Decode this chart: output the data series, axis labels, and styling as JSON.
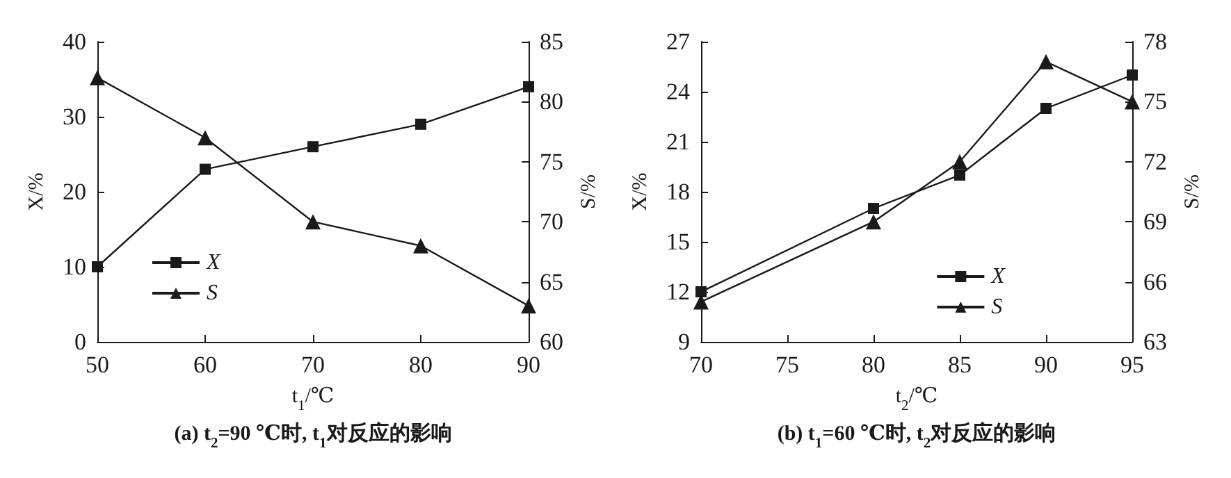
{
  "chart_data": [
    {
      "type": "line",
      "title": "(a) t$_{2}$=90 ℃时, t$_{1}$对反应的影响",
      "xlabel": "t$_{1}$/℃",
      "ylabel": "X/%",
      "y2label": "S/%",
      "x": [
        50,
        60,
        70,
        80,
        90
      ],
      "xlim": [
        50,
        90
      ],
      "xticks": [
        50,
        60,
        70,
        80,
        90
      ],
      "ylim": [
        0,
        40
      ],
      "yticks": [
        0,
        10,
        20,
        30,
        40
      ],
      "y2lim": [
        60,
        85
      ],
      "y2ticks": [
        60,
        65,
        70,
        75,
        80,
        85
      ],
      "legend": "bottom left",
      "series": [
        {
          "name": "X",
          "color": "#1a1a1a",
          "marker": "square",
          "values": [
            10,
            23,
            26,
            29,
            34
          ]
        },
        {
          "name": "S",
          "color": "#1a1a1a",
          "marker": "triangle",
          "axis": "y2",
          "values": [
            82,
            77,
            70,
            68,
            63
          ]
        }
      ]
    },
    {
      "type": "line",
      "title": "(b) t$_{1}$=60 ℃时, t$_{2}$对反应的影响",
      "xlabel": "t$_{2}$/℃",
      "ylabel": "X/%",
      "y2label": "S/%",
      "x": [
        70,
        80,
        85,
        90,
        95
      ],
      "xlim": [
        70,
        95
      ],
      "xticks": [
        70,
        75,
        80,
        85,
        90,
        95
      ],
      "ylim": [
        9,
        27
      ],
      "yticks": [
        9,
        12,
        15,
        18,
        21,
        24,
        27
      ],
      "y2lim": [
        63,
        78
      ],
      "y2ticks": [
        63,
        66,
        69,
        72,
        75,
        78
      ],
      "legend": "bottom",
      "series": [
        {
          "name": "X",
          "color": "#1a1a1a",
          "marker": "square",
          "values": [
            12,
            17,
            19,
            23,
            25
          ]
        },
        {
          "name": "S",
          "color": "#1a1a1a",
          "marker": "triangle",
          "axis": "y2",
          "values": [
            65,
            69,
            72,
            77,
            75
          ]
        }
      ]
    }
  ]
}
